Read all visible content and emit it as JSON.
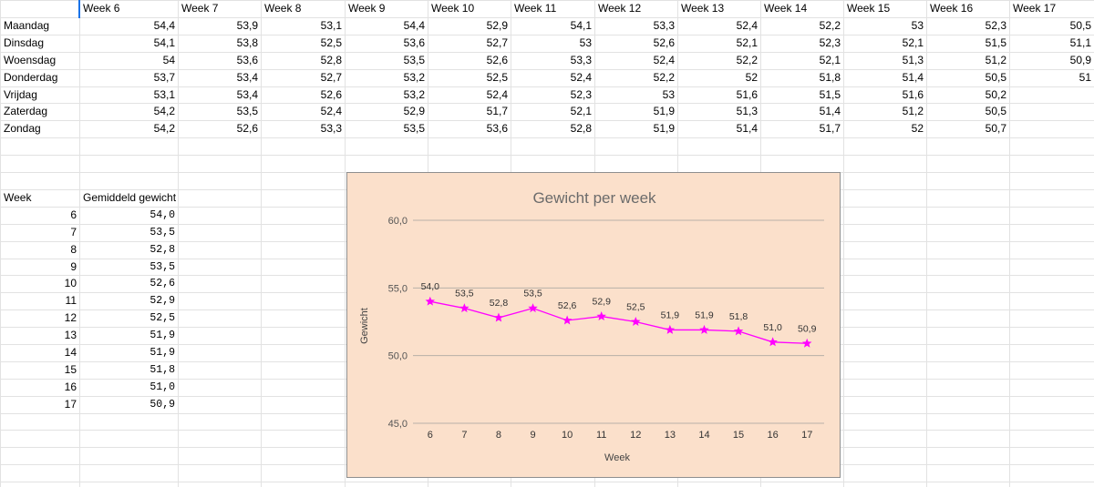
{
  "table": {
    "headers": [
      "Week 6",
      "Week 7",
      "Week 8",
      "Week 9",
      "Week 10",
      "Week 11",
      "Week 12",
      "Week 13",
      "Week 14",
      "Week 15",
      "Week 16",
      "Week 17"
    ],
    "rows": [
      {
        "day": "Maandag",
        "values": [
          "54,4",
          "53,9",
          "53,1",
          "54,4",
          "52,9",
          "54,1",
          "53,3",
          "52,4",
          "52,2",
          "53",
          "52,3",
          "50,5"
        ]
      },
      {
        "day": "Dinsdag",
        "values": [
          "54,1",
          "53,8",
          "52,5",
          "53,6",
          "52,7",
          "53",
          "52,6",
          "52,1",
          "52,3",
          "52,1",
          "51,5",
          "51,1"
        ]
      },
      {
        "day": "Woensdag",
        "values": [
          "54",
          "53,6",
          "52,8",
          "53,5",
          "52,6",
          "53,3",
          "52,4",
          "52,2",
          "52,1",
          "51,3",
          "51,2",
          "50,9"
        ]
      },
      {
        "day": "Donderdag",
        "values": [
          "53,7",
          "53,4",
          "52,7",
          "53,2",
          "52,5",
          "52,4",
          "52,2",
          "52",
          "51,8",
          "51,4",
          "50,5",
          "51"
        ]
      },
      {
        "day": "Vrijdag",
        "values": [
          "53,1",
          "53,4",
          "52,6",
          "53,2",
          "52,4",
          "52,3",
          "53",
          "51,6",
          "51,5",
          "51,6",
          "50,2",
          ""
        ]
      },
      {
        "day": "Zaterdag",
        "values": [
          "54,2",
          "53,5",
          "52,4",
          "52,9",
          "51,7",
          "52,1",
          "51,9",
          "51,3",
          "51,4",
          "51,2",
          "50,5",
          ""
        ]
      },
      {
        "day": "Zondag",
        "values": [
          "54,2",
          "52,6",
          "53,3",
          "53,5",
          "53,6",
          "52,8",
          "51,9",
          "51,4",
          "51,7",
          "52",
          "50,7",
          ""
        ]
      }
    ]
  },
  "summary": {
    "header_week": "Week",
    "header_avg": "Gemiddeld gewicht",
    "rows": [
      {
        "week": "6",
        "avg": "54,0"
      },
      {
        "week": "7",
        "avg": "53,5"
      },
      {
        "week": "8",
        "avg": "52,8"
      },
      {
        "week": "9",
        "avg": "53,5"
      },
      {
        "week": "10",
        "avg": "52,6"
      },
      {
        "week": "11",
        "avg": "52,9"
      },
      {
        "week": "12",
        "avg": "52,5"
      },
      {
        "week": "13",
        "avg": "51,9"
      },
      {
        "week": "14",
        "avg": "51,9"
      },
      {
        "week": "15",
        "avg": "51,8"
      },
      {
        "week": "16",
        "avg": "51,0"
      },
      {
        "week": "17",
        "avg": "50,9"
      }
    ]
  },
  "chart_data": {
    "type": "line",
    "title": "Gewicht per week",
    "xlabel": "Week",
    "ylabel": "Gewicht",
    "x": [
      "6",
      "7",
      "8",
      "9",
      "10",
      "11",
      "12",
      "13",
      "14",
      "15",
      "16",
      "17"
    ],
    "series": [
      {
        "values": [
          54.0,
          53.5,
          52.8,
          53.5,
          52.6,
          52.9,
          52.5,
          51.9,
          51.9,
          51.8,
          51.0,
          50.9
        ],
        "labels": [
          "54,0",
          "53,5",
          "52,8",
          "53,5",
          "52,6",
          "52,9",
          "52,5",
          "51,9",
          "51,9",
          "51,8",
          "51,0",
          "50,9"
        ],
        "marker": "star",
        "color": "#ff00ff"
      }
    ],
    "ylim": [
      45,
      60
    ],
    "yticks": [
      "45,0",
      "50,0",
      "55,0",
      "60,0"
    ],
    "yticks_values": [
      45,
      50,
      55,
      60
    ],
    "grid": true,
    "background": "#fbe0cb",
    "gridline_color": "#b8b0a8",
    "axis_label_color": "#555555"
  },
  "colors": {
    "grid_line": "#e2e2e2",
    "selection": "#1a73e8"
  }
}
